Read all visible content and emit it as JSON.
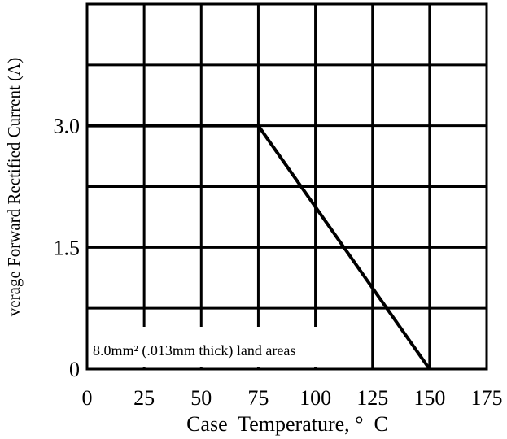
{
  "chart_data": {
    "type": "line",
    "title": "",
    "xlabel": "Case  Temperature, °  C",
    "ylabel": "verage Forward Rectified Current (A)",
    "x_ticks": [
      "0",
      "25",
      "50",
      "75",
      "100",
      "125",
      "150",
      "175"
    ],
    "y_ticks": [
      "0",
      "1.5",
      "3.0"
    ],
    "xlim": [
      0,
      175
    ],
    "ylim": [
      0,
      4.5
    ],
    "grid": true,
    "series": [
      {
        "x": [
          0,
          75,
          150
        ],
        "y": [
          3.0,
          3.0,
          0
        ]
      }
    ],
    "annotation": "8.0mm² (.013mm thick) land areas"
  }
}
